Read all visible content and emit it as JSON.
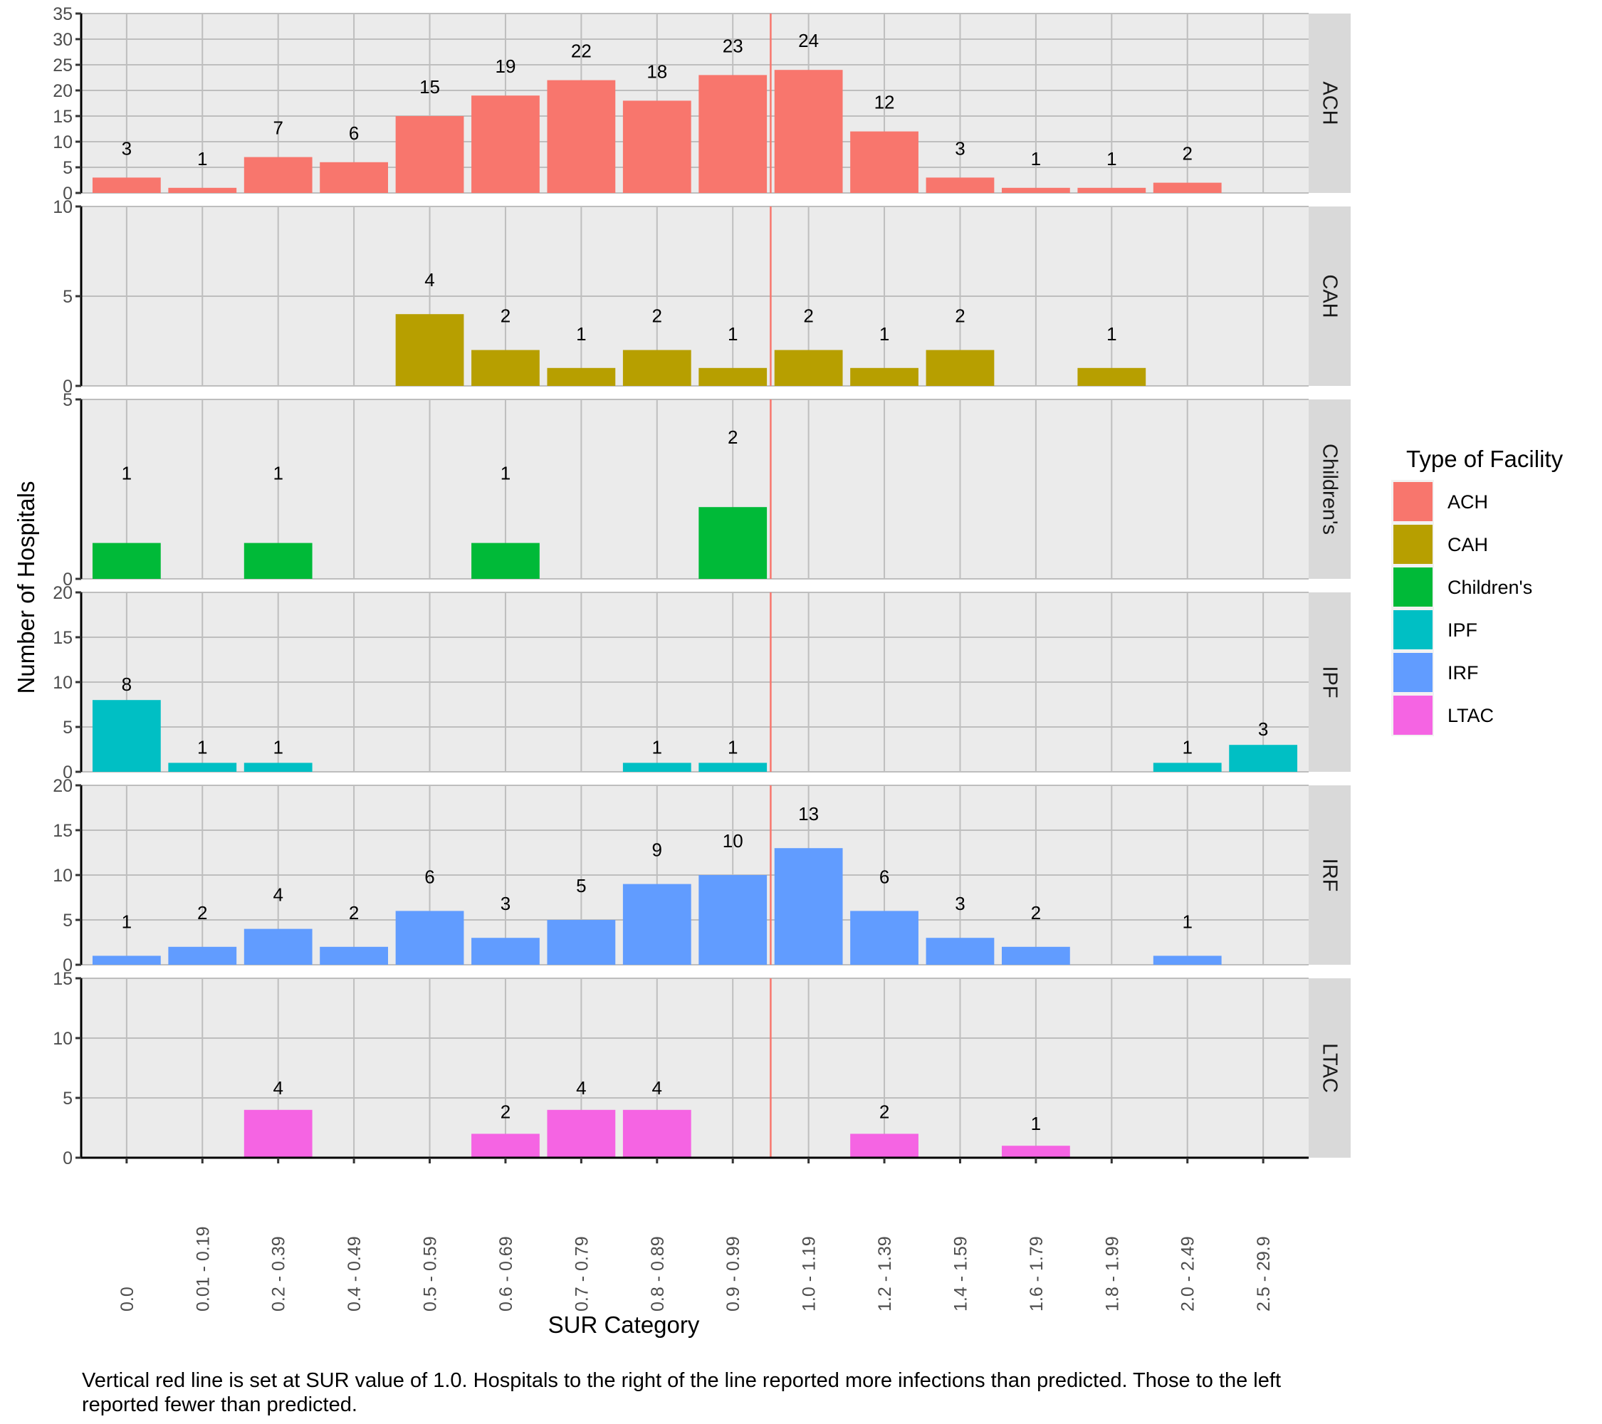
{
  "chart_data": {
    "type": "bar",
    "layout": "faceted-rows",
    "title": "",
    "xlabel": "SUR Category",
    "ylabel": "Number of Hospitals",
    "caption": "Vertical red line is set at SUR value of 1.0.  Hospitals to the right of the line reported more infections than predicted. Those to the left reported fewer than predicted.",
    "grid": true,
    "reference_line": {
      "orientation": "vertical",
      "position_between": [
        "0.9 - 0.99",
        "1.0 - 1.19"
      ],
      "sur_value": 1.0,
      "color": "#F8766D"
    },
    "categories": [
      "0.0",
      "0.01 - 0.19",
      "0.2 - 0.39",
      "0.4 - 0.49",
      "0.5 - 0.59",
      "0.6 - 0.69",
      "0.7 - 0.79",
      "0.8 - 0.89",
      "0.9 - 0.99",
      "1.0 - 1.19",
      "1.2 - 1.39",
      "1.4 - 1.59",
      "1.6 - 1.79",
      "1.8 - 1.99",
      "2.0 - 2.49",
      "2.5 - 29.9"
    ],
    "legend": {
      "title": "Type of Facility",
      "placement": "right"
    },
    "series": [
      {
        "name": "ACH",
        "color": "#F8766D",
        "ylim": [
          0,
          35
        ],
        "yticks": [
          0,
          5,
          10,
          15,
          20,
          25,
          30,
          35
        ],
        "values": [
          3,
          1,
          7,
          6,
          15,
          19,
          22,
          18,
          23,
          24,
          12,
          3,
          1,
          1,
          2,
          null
        ]
      },
      {
        "name": "CAH",
        "color": "#B79F00",
        "ylim": [
          0,
          10
        ],
        "yticks": [
          0,
          5,
          10
        ],
        "values": [
          null,
          null,
          null,
          null,
          4,
          2,
          1,
          2,
          1,
          2,
          1,
          2,
          null,
          1,
          null,
          null
        ]
      },
      {
        "name": "Children's",
        "color": "#00BA38",
        "ylim": [
          0,
          5
        ],
        "yticks": [
          0,
          5
        ],
        "values": [
          1,
          null,
          1,
          null,
          null,
          1,
          null,
          null,
          2,
          null,
          null,
          null,
          null,
          null,
          null,
          null
        ]
      },
      {
        "name": "IPF",
        "color": "#00BFC4",
        "ylim": [
          0,
          20
        ],
        "yticks": [
          0,
          5,
          10,
          15,
          20
        ],
        "values": [
          8,
          1,
          1,
          null,
          null,
          null,
          null,
          1,
          1,
          null,
          null,
          null,
          null,
          null,
          1,
          3
        ]
      },
      {
        "name": "IRF",
        "color": "#619CFF",
        "ylim": [
          0,
          20
        ],
        "yticks": [
          0,
          5,
          10,
          15,
          20
        ],
        "values": [
          1,
          2,
          4,
          2,
          6,
          3,
          5,
          9,
          10,
          13,
          6,
          3,
          2,
          null,
          1,
          null
        ]
      },
      {
        "name": "LTAC",
        "color": "#F564E3",
        "ylim": [
          0,
          15
        ],
        "yticks": [
          0,
          5,
          10,
          15
        ],
        "values": [
          null,
          null,
          4,
          null,
          null,
          2,
          4,
          4,
          null,
          null,
          2,
          null,
          1,
          null,
          null,
          null
        ]
      }
    ]
  }
}
